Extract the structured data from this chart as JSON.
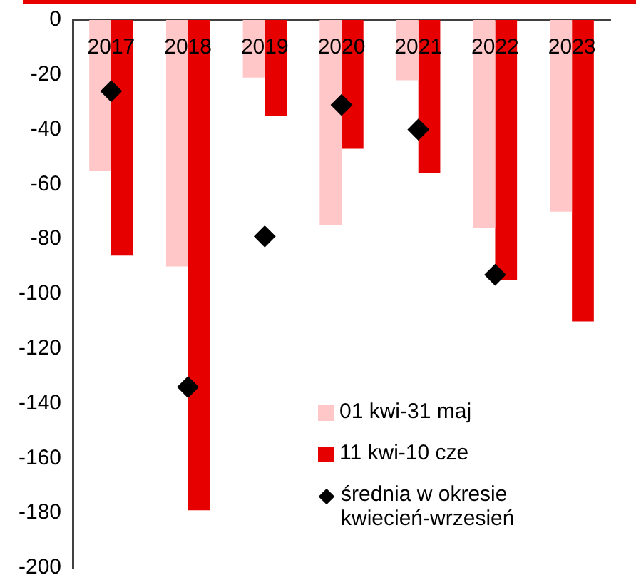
{
  "chart_data": {
    "type": "bar",
    "categories": [
      "2017",
      "2018",
      "2019",
      "2020",
      "2021",
      "2022",
      "2023"
    ],
    "series": [
      {
        "name": "01 kwi-31 maj",
        "color": "#ffc7c7",
        "values": [
          -55,
          -90,
          -21,
          -75,
          -22,
          -76,
          -70
        ]
      },
      {
        "name": "11 kwi-10 cze",
        "color": "#e60000",
        "values": [
          -86,
          -179,
          -35,
          -47,
          -56,
          -95,
          -110
        ]
      },
      {
        "name": "średnia w okresie kwiecień-wrzesień",
        "type": "scatter",
        "color": "#000000",
        "marker": "diamond",
        "values": [
          -26,
          -134,
          -79,
          -31,
          -40,
          -93,
          null
        ]
      }
    ],
    "ylim": [
      -200,
      0
    ],
    "yticks": [
      -200,
      -180,
      -160,
      -140,
      -120,
      -100,
      -80,
      -60,
      -40,
      -20,
      0
    ],
    "grid": false,
    "legend": "bottom right"
  }
}
